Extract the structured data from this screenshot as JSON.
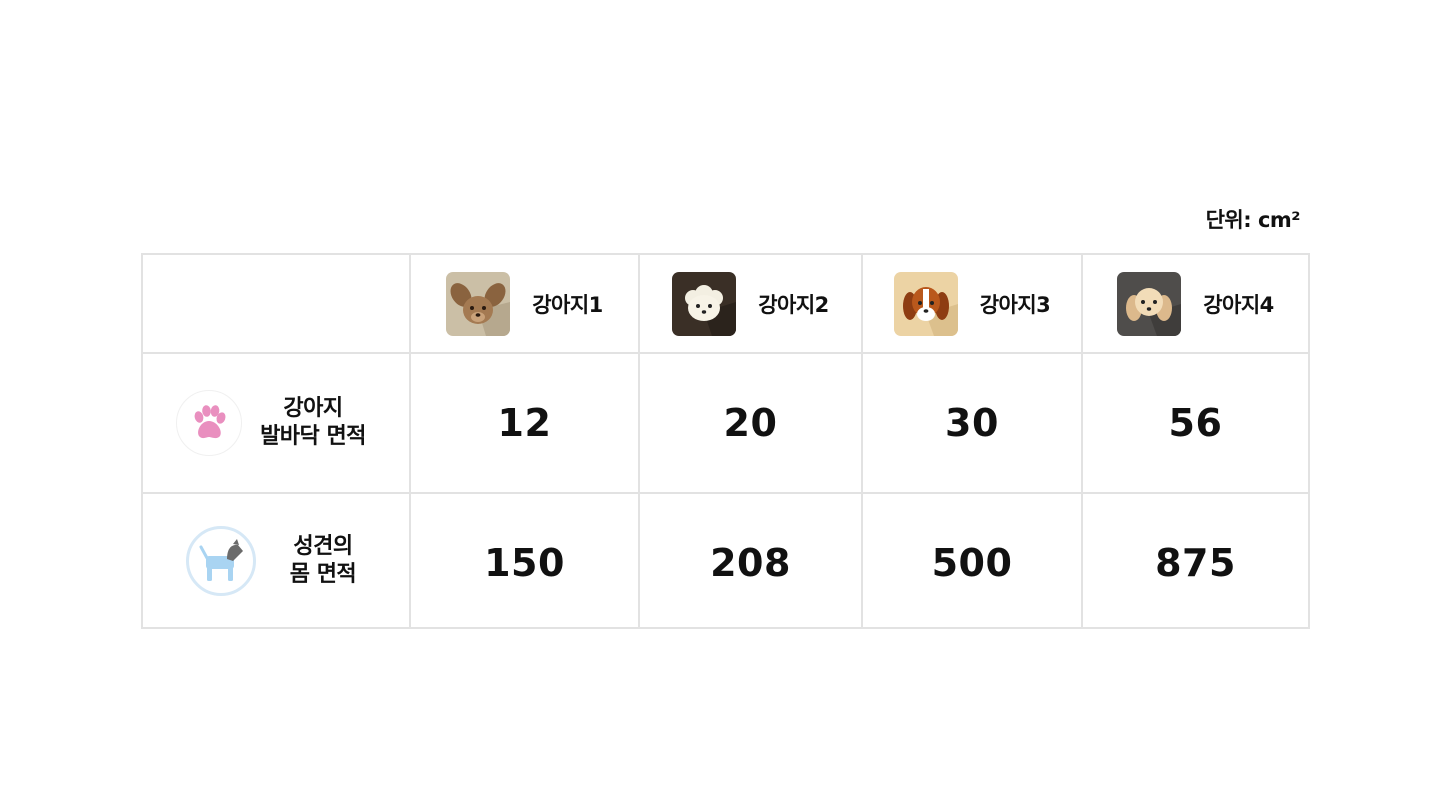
{
  "unit_label": "단위: cm²",
  "dogs": [
    {
      "label": "강아지1",
      "icon": "chihuahua-icon"
    },
    {
      "label": "강아지2",
      "icon": "maltese-icon"
    },
    {
      "label": "강아지3",
      "icon": "beagle-icon"
    },
    {
      "label": "강아지4",
      "icon": "poodle-icon"
    }
  ],
  "rows": [
    {
      "label": "강아지\n발바닥 면적",
      "icon": "paw-icon",
      "values": [
        "12",
        "20",
        "30",
        "56"
      ]
    },
    {
      "label": "성견의\n몸 면적",
      "icon": "dog-body-icon",
      "values": [
        "150",
        "208",
        "500",
        "875"
      ]
    }
  ],
  "colors": {
    "grid": "#e2e2e2",
    "paw": "#e98fbf",
    "dog_body": "#a9d4f2",
    "dog_head": "#6b6b6b"
  }
}
